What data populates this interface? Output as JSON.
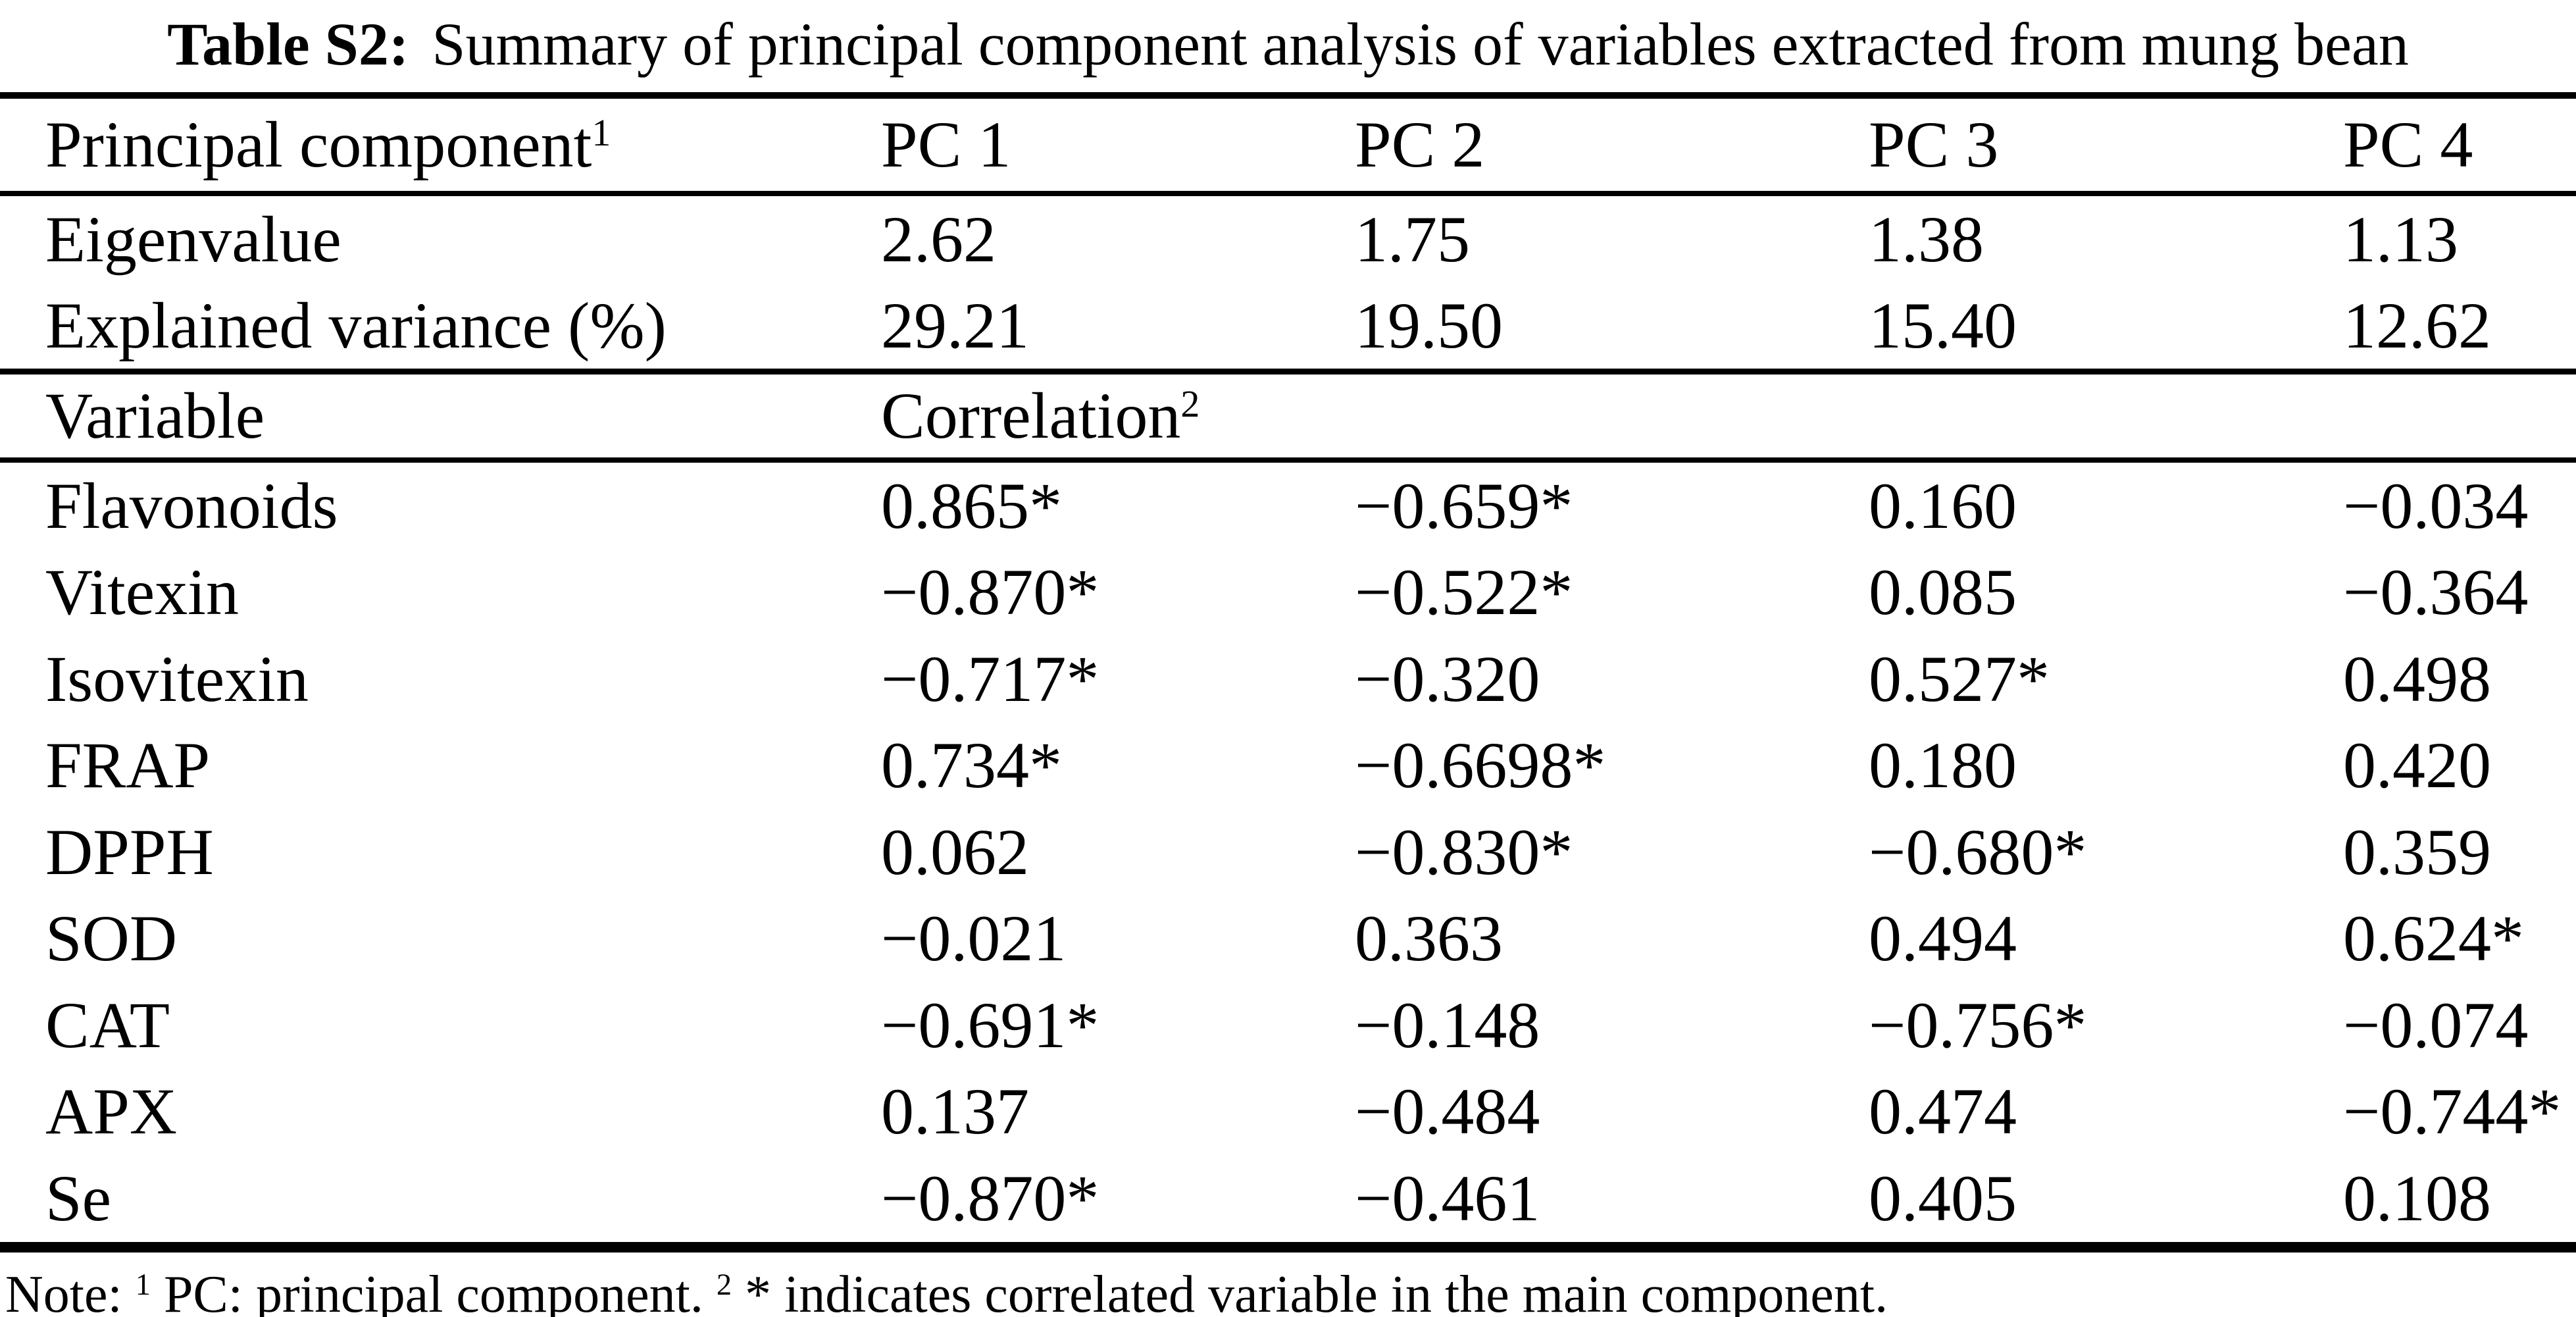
{
  "title": {
    "label": "Table S2:",
    "text": "Summary of principal component analysis of variables extracted from mung bean"
  },
  "table": {
    "header": {
      "label": "Principal component",
      "label_sup": "1",
      "pcs": [
        "PC 1",
        "PC 2",
        "PC 3",
        "PC 4"
      ]
    },
    "stats": [
      {
        "label": "Eigenvalue",
        "values": [
          "2.62",
          "1.75",
          "1.38",
          "1.13"
        ]
      },
      {
        "label": "Explained variance (%)",
        "values": [
          "29.21",
          "19.50",
          "15.40",
          "12.62"
        ]
      }
    ],
    "subheader": {
      "label": "Variable",
      "correlation": "Correlation",
      "correlation_sup": "2"
    },
    "rows": [
      {
        "label": "Flavonoids",
        "values": [
          "0.865*",
          "−0.659*",
          "0.160",
          "−0.034"
        ]
      },
      {
        "label": "Vitexin",
        "values": [
          "−0.870*",
          "−0.522*",
          "0.085",
          "−0.364"
        ]
      },
      {
        "label": "Isovitexin",
        "values": [
          "−0.717*",
          "−0.320",
          "0.527*",
          "0.498"
        ]
      },
      {
        "label": "FRAP",
        "values": [
          "0.734*",
          "−0.6698*",
          "0.180",
          "0.420"
        ]
      },
      {
        "label": "DPPH",
        "values": [
          "0.062",
          "−0.830*",
          "−0.680*",
          "0.359"
        ]
      },
      {
        "label": "SOD",
        "values": [
          "−0.021",
          "0.363",
          "0.494",
          "0.624*"
        ]
      },
      {
        "label": "CAT",
        "values": [
          "−0.691*",
          "−0.148",
          "−0.756*",
          "−0.074"
        ]
      },
      {
        "label": "APX",
        "values": [
          "0.137",
          "−0.484",
          "0.474",
          "−0.744*"
        ]
      },
      {
        "label": "Se",
        "values": [
          "−0.870*",
          "−0.461",
          "0.405",
          "0.108"
        ]
      }
    ]
  },
  "note": {
    "lead": "Note: ",
    "sup1": "1",
    "seg1": " PC: principal component. ",
    "sup2": "2",
    "seg2": " * indicates correlated variable in the main component."
  }
}
